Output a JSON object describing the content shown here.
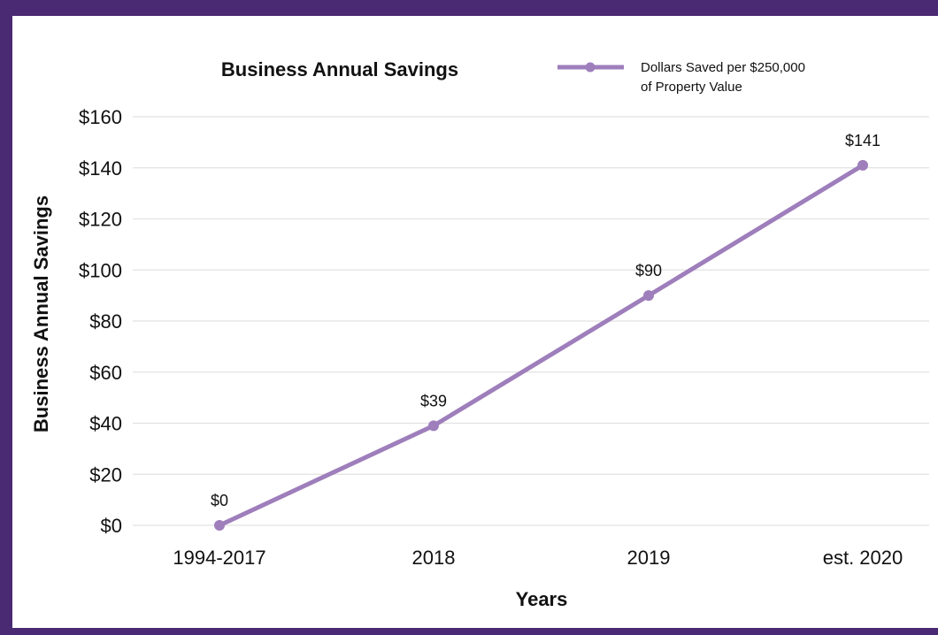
{
  "colors": {
    "frame": "#4a2a72",
    "series": "#9e7ebb",
    "grid": "#e2e2e2"
  },
  "chart_data": {
    "type": "line",
    "title": "Business Annual Savings",
    "xlabel": "Years",
    "ylabel": "Business Annual Savings",
    "categories": [
      "1994-2017",
      "2018",
      "2019",
      "est. 2020"
    ],
    "series": [
      {
        "name": "Dollars Saved per $250,000 of Property Value",
        "name_lines": [
          "Dollars Saved per $250,000",
          "of Property Value"
        ],
        "values": [
          0,
          39,
          90,
          141
        ],
        "data_labels": [
          "$0",
          "$39",
          "$90",
          "$141"
        ],
        "color": "#9e7ebb"
      }
    ],
    "ylim": [
      0,
      160
    ],
    "yticks": [
      0,
      20,
      40,
      60,
      80,
      100,
      120,
      140,
      160
    ],
    "ytick_labels": [
      "$0",
      "$20",
      "$40",
      "$60",
      "$80",
      "$100",
      "$120",
      "$140",
      "$160"
    ],
    "grid": true,
    "legend": "top-right"
  }
}
